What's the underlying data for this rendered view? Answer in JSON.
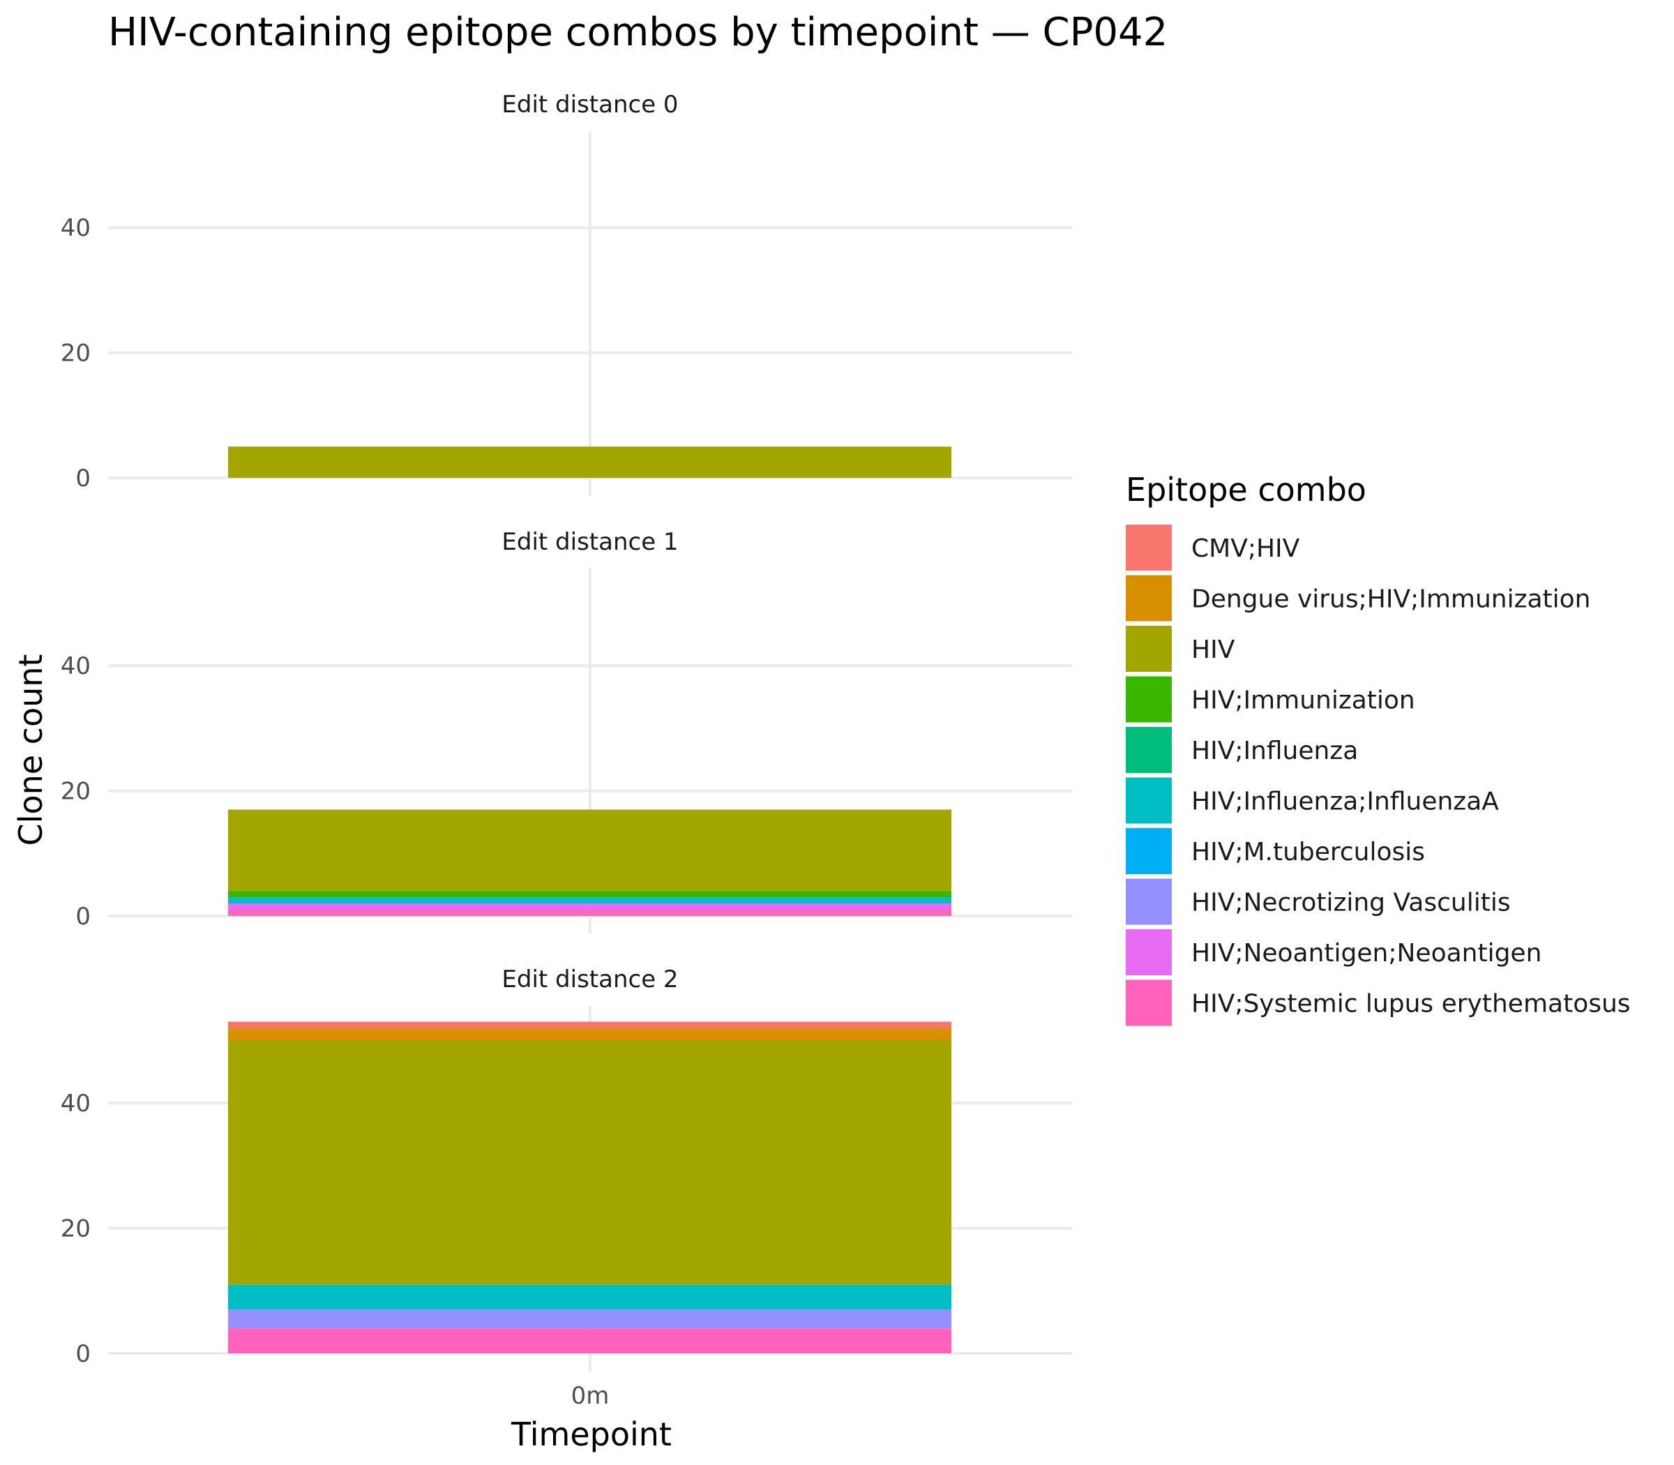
{
  "chart_data": {
    "type": "bar",
    "stacked": true,
    "title": "HIV-containing epitope combos by timepoint — CP042",
    "xlabel": "Timepoint",
    "ylabel": "Clone count",
    "categories": [
      "0m"
    ],
    "yticks": [
      0,
      20,
      40
    ],
    "ylim": [
      0,
      55.5
    ],
    "grid": true,
    "legend": {
      "title": "Epitope combo",
      "position": "right",
      "entries": [
        {
          "name": "CMV;HIV",
          "color": "#F8766D"
        },
        {
          "name": "Dengue virus;HIV;Immunization",
          "color": "#D89000"
        },
        {
          "name": "HIV",
          "color": "#A3A500"
        },
        {
          "name": "HIV;Immunization",
          "color": "#39B600"
        },
        {
          "name": "HIV;Influenza",
          "color": "#00BF7D"
        },
        {
          "name": "HIV;Influenza;InfluenzaA",
          "color": "#00BFC4"
        },
        {
          "name": "HIV;M.tuberculosis",
          "color": "#00B0F6"
        },
        {
          "name": "HIV;Necrotizing Vasculitis",
          "color": "#9590FF"
        },
        {
          "name": "HIV;Neoantigen;Neoantigen",
          "color": "#E76BF3"
        },
        {
          "name": "HIV;Systemic lupus erythematosus",
          "color": "#FF62BC"
        }
      ]
    },
    "facets": [
      {
        "label": "Edit distance 0",
        "stack": [
          {
            "name": "HIV",
            "value": 5
          }
        ]
      },
      {
        "label": "Edit distance 1",
        "stack": [
          {
            "name": "HIV;Systemic lupus erythematosus",
            "value": 1
          },
          {
            "name": "HIV;Neoantigen;Neoantigen",
            "value": 1
          },
          {
            "name": "HIV;Influenza;InfluenzaA",
            "value": 1
          },
          {
            "name": "HIV;Immunization",
            "value": 1
          },
          {
            "name": "HIV",
            "value": 13
          }
        ]
      },
      {
        "label": "Edit distance 2",
        "stack": [
          {
            "name": "HIV;Systemic lupus erythematosus",
            "value": 4
          },
          {
            "name": "HIV;Necrotizing Vasculitis",
            "value": 3
          },
          {
            "name": "HIV;Influenza;InfluenzaA",
            "value": 4
          },
          {
            "name": "HIV",
            "value": 39
          },
          {
            "name": "Dengue virus;HIV;Immunization",
            "value": 2
          },
          {
            "name": "CMV;HIV",
            "value": 1
          }
        ]
      }
    ]
  }
}
